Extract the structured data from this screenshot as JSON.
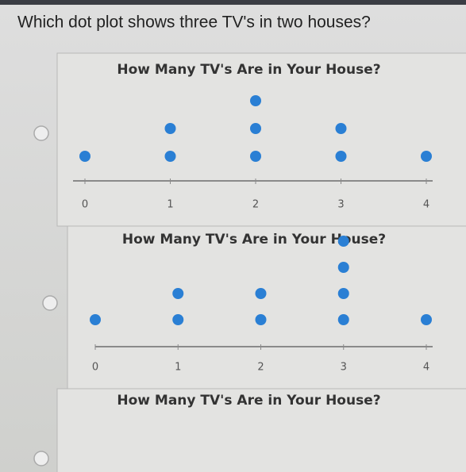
{
  "question": "Which dot plot shows three TV's in two houses?",
  "chart_data": [
    {
      "type": "dot",
      "title": "How Many TV's Are in Your House?",
      "categories": [
        0,
        1,
        2,
        3,
        4
      ],
      "values": [
        1,
        2,
        3,
        2,
        1
      ],
      "xlim": [
        0,
        4
      ],
      "xticks": [
        0,
        1,
        2,
        3,
        4
      ],
      "color": "#2a7fd4"
    },
    {
      "type": "dot",
      "title": "How Many TV's Are in Your House?",
      "categories": [
        0,
        1,
        2,
        3,
        4
      ],
      "values": [
        1,
        2,
        2,
        4,
        1
      ],
      "xlim": [
        0,
        4
      ],
      "xticks": [
        0,
        1,
        2,
        3,
        4
      ],
      "color": "#2a7fd4"
    },
    {
      "type": "dot",
      "title": "How Many TV's Are in Your House?"
    }
  ]
}
